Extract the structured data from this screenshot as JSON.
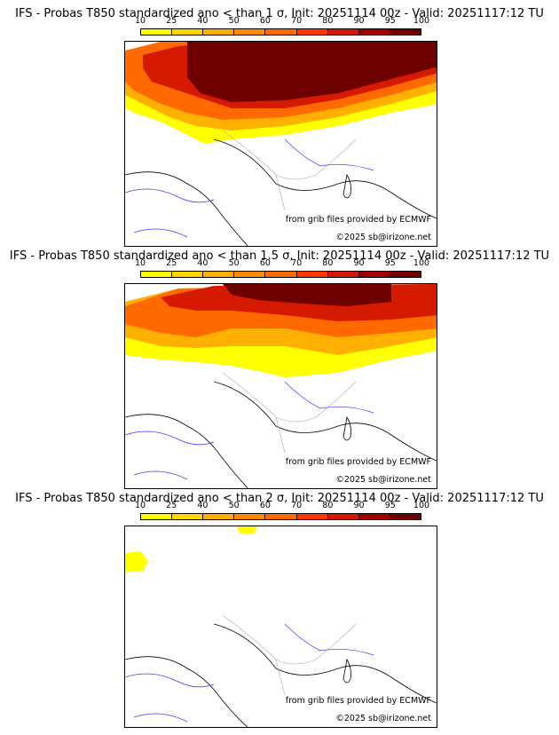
{
  "legend": {
    "ticks": [
      "10",
      "25",
      "40",
      "50",
      "60",
      "70",
      "80",
      "90",
      "95",
      "100"
    ],
    "colors": [
      "#ffff00",
      "#ffd700",
      "#ffb000",
      "#ff8c00",
      "#ff6a00",
      "#ff3500",
      "#d61a00",
      "#a00000",
      "#6e0000"
    ]
  },
  "panels": [
    {
      "title": "IFS - Probas T850  standardized ano < than 1 σ, Init: 20251114 00z - Valid: 20251117:12 TU",
      "source": "from grib files provided by ECMWF",
      "copyright": "©2025 sb@irizone.net"
    },
    {
      "title": "IFS - Probas T850  standardized ano < than 1.5 σ, Init: 20251114 00z - Valid: 20251117:12 TU",
      "source": "from grib files provided by ECMWF",
      "copyright": "©2025 sb@irizone.net"
    },
    {
      "title": "IFS - Probas T850  standardized ano < than 2 σ, Init: 20251114 00z - Valid: 20251117:12 TU",
      "source": "from grib files provided by ECMWF",
      "copyright": "©2025 sb@irizone.net"
    }
  ]
}
